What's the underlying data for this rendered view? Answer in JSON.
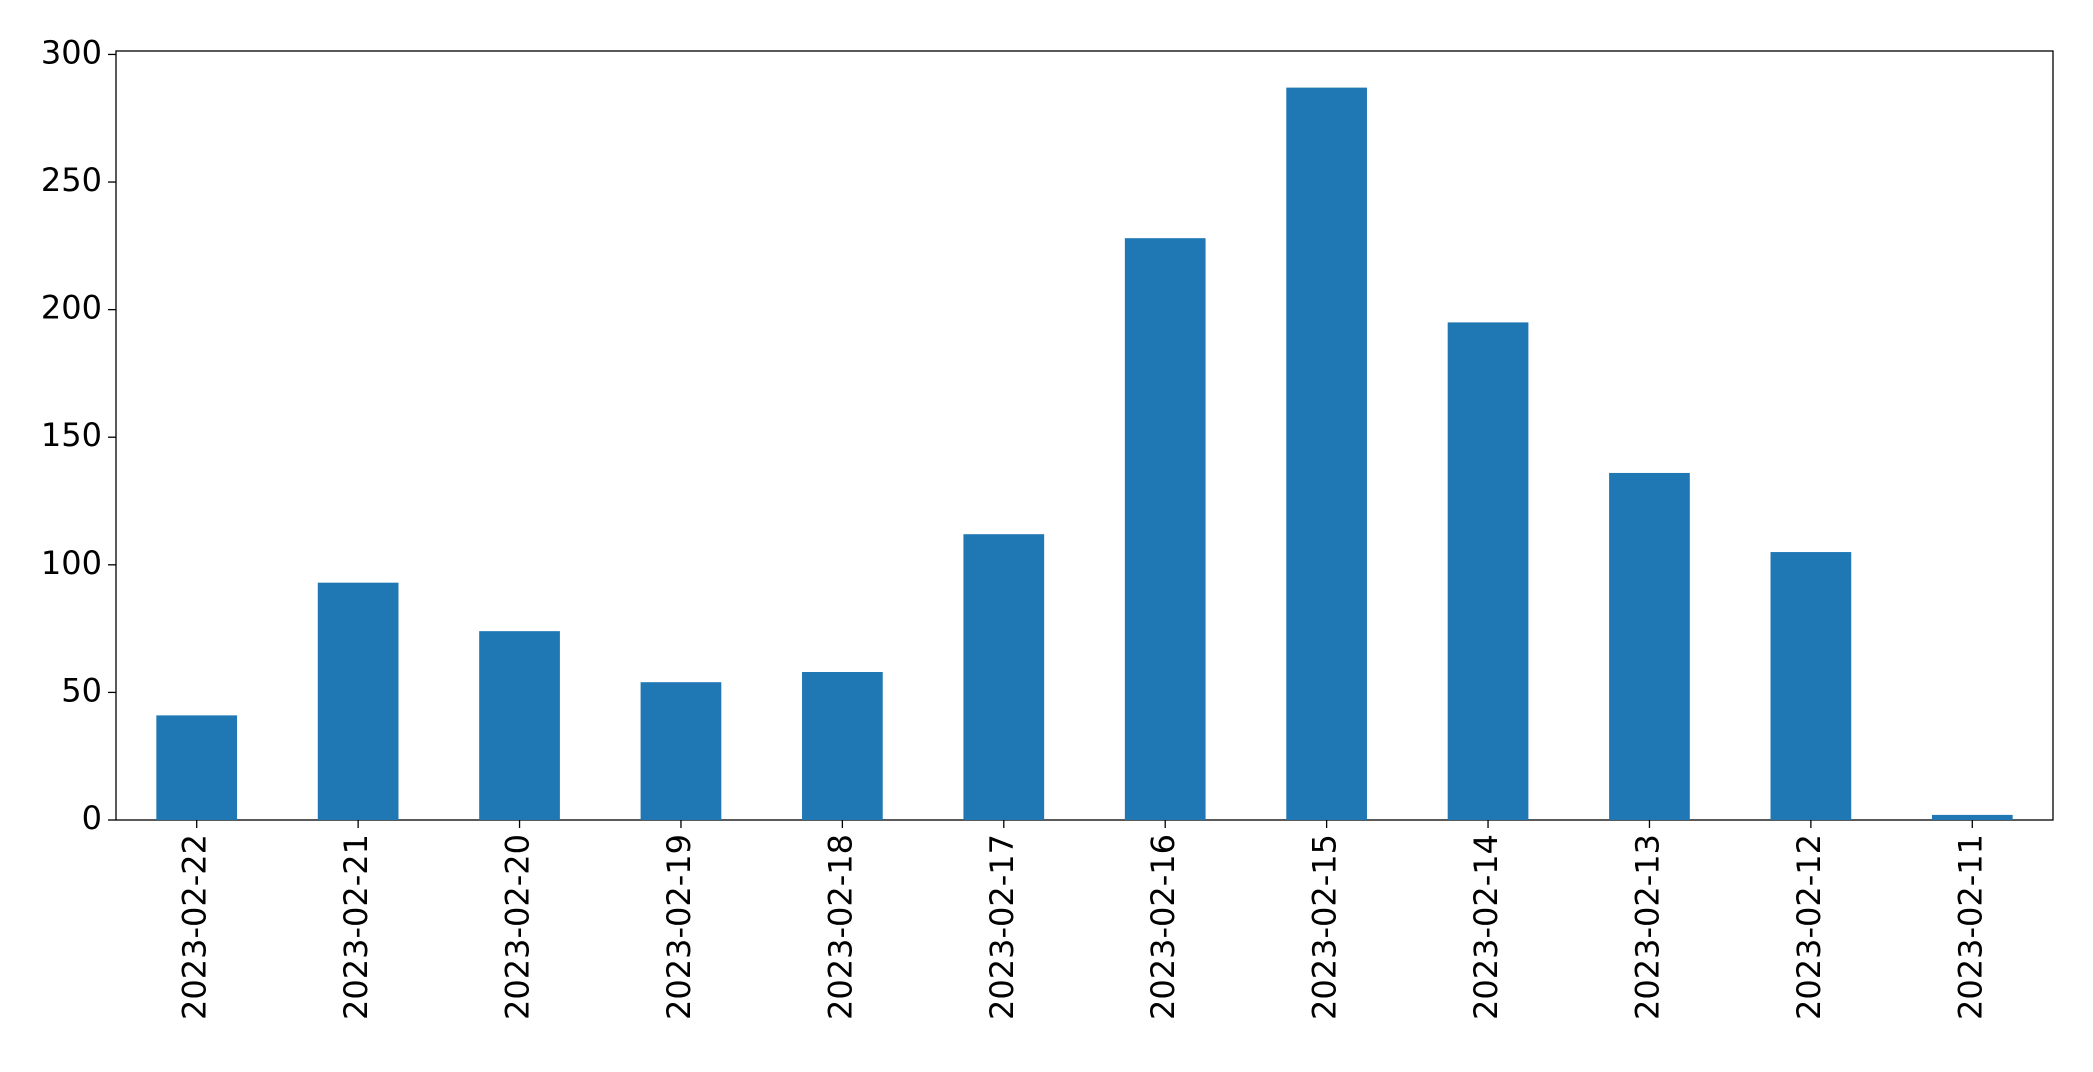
{
  "chart_data": {
    "type": "bar",
    "categories": [
      "2023-02-22",
      "2023-02-21",
      "2023-02-20",
      "2023-02-19",
      "2023-02-18",
      "2023-02-17",
      "2023-02-16",
      "2023-02-15",
      "2023-02-14",
      "2023-02-13",
      "2023-02-12",
      "2023-02-11"
    ],
    "values": [
      41,
      93,
      74,
      54,
      58,
      112,
      228,
      287,
      195,
      136,
      105,
      2
    ],
    "color": "#1f77b4",
    "ylim": [
      0,
      301.35
    ],
    "yticks": [
      0,
      50,
      100,
      150,
      200,
      250,
      300
    ],
    "grid": false
  }
}
